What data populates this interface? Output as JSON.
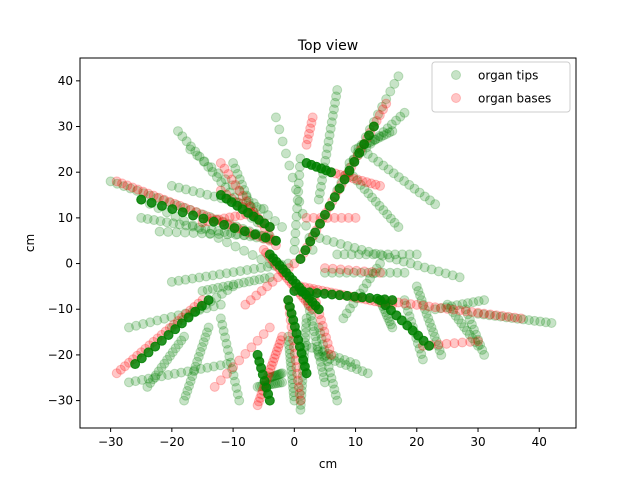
{
  "chart_data": {
    "type": "scatter",
    "title": "Top view",
    "xlabel": "cm",
    "ylabel": "cm",
    "xlim": [
      -35,
      46
    ],
    "ylim": [
      -36,
      45
    ],
    "xticks": [
      -30,
      -20,
      -10,
      0,
      10,
      20,
      30,
      40
    ],
    "yticks": [
      -30,
      -20,
      -10,
      0,
      10,
      20,
      30,
      40
    ],
    "xtick_labels": [
      "−30",
      "−20",
      "−10",
      "0",
      "10",
      "20",
      "30",
      "40"
    ],
    "ytick_labels": [
      "−30",
      "−20",
      "−10",
      "0",
      "10",
      "20",
      "30",
      "40"
    ],
    "grid": false,
    "legend_position": "top-right",
    "series": [
      {
        "name": "organ tips",
        "color": "#008000",
        "alpha": 0.22,
        "segments": [
          [
            -3,
            5,
            -30,
            18,
            26
          ],
          [
            -3,
            5,
            -25,
            10,
            22
          ],
          [
            -7,
            10,
            -19,
            29,
            18
          ],
          [
            -6,
            9,
            -10,
            22,
            12
          ],
          [
            -2,
            8,
            -17,
            25,
            14
          ],
          [
            -5,
            12,
            -20,
            17,
            14
          ],
          [
            -4,
            6,
            -22,
            7,
            14
          ],
          [
            -4,
            0,
            -25,
            14,
            16
          ],
          [
            4,
            14,
            7,
            38,
            18
          ],
          [
            7,
            16,
            17,
            41,
            16
          ],
          [
            9,
            22,
            18,
            33,
            14
          ],
          [
            10,
            25,
            16,
            29,
            14
          ],
          [
            12,
            24,
            23,
            13,
            14
          ],
          [
            9,
            20,
            17,
            8,
            14
          ],
          [
            3,
            3,
            -3,
            32,
            12
          ],
          [
            0,
            3,
            1,
            23,
            12
          ],
          [
            -1,
            0,
            -20,
            -4,
            18
          ],
          [
            -4,
            -3,
            -15,
            -6,
            14
          ],
          [
            -10,
            -5,
            -20,
            -14,
            12
          ],
          [
            -12,
            -9,
            -27,
            -14,
            14
          ],
          [
            -11,
            -22,
            -27,
            -26,
            16
          ],
          [
            -18,
            -16,
            -24,
            -27,
            14
          ],
          [
            -14,
            -14,
            -18,
            -30,
            16
          ],
          [
            -12,
            -12,
            -9,
            -30,
            14
          ],
          [
            -6,
            -27,
            -2,
            -26,
            12
          ],
          [
            -4,
            -25,
            -2,
            -24,
            10
          ],
          [
            2,
            -12,
            1,
            -32,
            20
          ],
          [
            -1,
            -16,
            0,
            -30,
            16
          ],
          [
            4,
            -14,
            7,
            -30,
            14
          ],
          [
            2,
            -18,
            10,
            -22,
            10
          ],
          [
            4,
            -20,
            12,
            -24,
            10
          ],
          [
            2,
            -7,
            5,
            -26,
            18
          ],
          [
            5,
            -2,
            18,
            -2,
            12
          ],
          [
            7,
            2,
            20,
            2,
            12
          ],
          [
            3,
            6,
            27,
            -3,
            22
          ],
          [
            14,
            0,
            8,
            -12,
            12
          ],
          [
            20,
            -5,
            24,
            -20,
            16
          ],
          [
            14,
            -8,
            16,
            -14,
            10
          ],
          [
            18,
            -8,
            21,
            -21,
            12
          ],
          [
            23,
            -10,
            31,
            -8,
            10
          ],
          [
            25,
            -9,
            30,
            -18,
            12
          ],
          [
            28,
            -10,
            31,
            -20,
            10
          ],
          [
            30,
            -11,
            42,
            -13,
            14
          ]
        ]
      },
      {
        "name": "organ bases",
        "color": "#ff0000",
        "alpha": 0.22,
        "segments": [
          [
            -4,
            5,
            -29,
            18,
            30
          ],
          [
            -3,
            4,
            -12,
            22,
            16
          ],
          [
            -12,
            16,
            -4,
            8,
            10
          ],
          [
            -7,
            11,
            -15,
            9,
            10
          ],
          [
            1,
            1,
            15,
            35,
            28
          ],
          [
            6,
            20,
            14,
            17,
            12
          ],
          [
            2,
            10,
            10,
            10,
            8
          ],
          [
            -5,
            3,
            3,
            -10,
            22
          ],
          [
            1,
            -5,
            16,
            -9,
            22
          ],
          [
            14,
            -8,
            37,
            -12,
            24
          ],
          [
            21,
            -18,
            30,
            -17,
            8
          ],
          [
            -15,
            -8,
            -29,
            -24,
            22
          ],
          [
            -6,
            -31,
            -2,
            -16,
            20
          ],
          [
            -1,
            -8,
            1,
            -30,
            16
          ],
          [
            3,
            -6,
            6,
            -20,
            12
          ],
          [
            0,
            0,
            -8,
            -9,
            10
          ],
          [
            -4,
            -14,
            -13,
            -27,
            10
          ],
          [
            5,
            -1,
            14,
            -2,
            8
          ],
          [
            3,
            32,
            2,
            26,
            6
          ]
        ]
      },
      {
        "name": "",
        "color": "#008000",
        "alpha": 0.85,
        "segments": [
          [
            -3,
            5,
            -25,
            14,
            14
          ],
          [
            1,
            1,
            13,
            30,
            16
          ],
          [
            -4,
            2,
            4,
            -10,
            16
          ],
          [
            -12,
            15,
            -4,
            8,
            10
          ],
          [
            0,
            -6,
            16,
            -8,
            14
          ],
          [
            14,
            -8,
            22,
            -18,
            10
          ],
          [
            -14,
            -8,
            -26,
            -22,
            12
          ],
          [
            -1,
            -8,
            2,
            -24,
            12
          ],
          [
            -6,
            -20,
            -4,
            -30,
            8
          ],
          [
            2,
            22,
            6,
            20,
            6
          ]
        ]
      }
    ]
  }
}
